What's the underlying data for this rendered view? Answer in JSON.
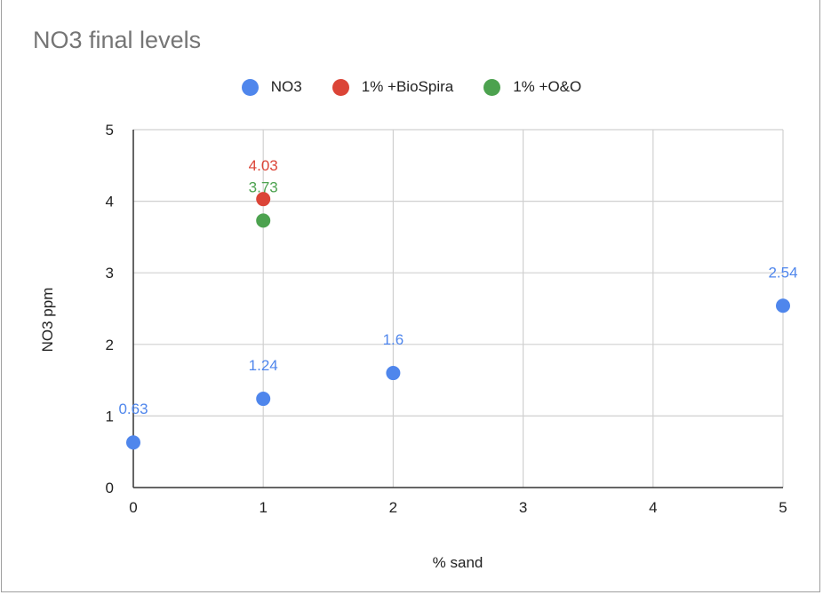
{
  "chart_data": {
    "type": "scatter",
    "title": "NO3 final levels",
    "xlabel": "% sand",
    "ylabel": "NO3 ppm",
    "xlim": [
      0,
      5
    ],
    "ylim": [
      0,
      5
    ],
    "x_ticks": [
      "0",
      "1",
      "2",
      "3",
      "4",
      "5"
    ],
    "y_ticks": [
      "0",
      "1",
      "2",
      "3",
      "4",
      "5"
    ],
    "grid": true,
    "legend_position": "top",
    "series": [
      {
        "name": "NO3",
        "color": "#4f86ec",
        "points": [
          {
            "x": 0,
            "y": 0.63,
            "label": "0.63"
          },
          {
            "x": 1,
            "y": 1.24,
            "label": "1.24"
          },
          {
            "x": 2,
            "y": 1.6,
            "label": "1.6"
          },
          {
            "x": 5,
            "y": 2.54,
            "label": "2.54"
          }
        ]
      },
      {
        "name": "1% +BioSpira",
        "color": "#db4437",
        "points": [
          {
            "x": 1,
            "y": 4.03,
            "label": "4.03"
          }
        ]
      },
      {
        "name": "1% +O&O",
        "color": "#4ca24f",
        "points": [
          {
            "x": 1,
            "y": 3.73,
            "label": "3.73"
          }
        ]
      }
    ]
  }
}
